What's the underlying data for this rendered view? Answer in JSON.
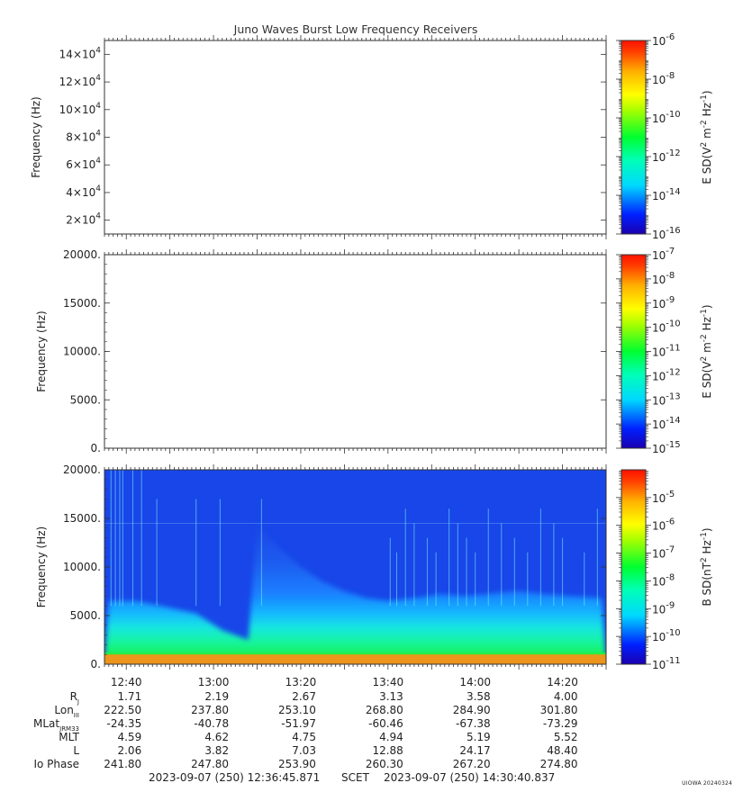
{
  "title": "Juno Waves Burst Low Frequency Receivers",
  "colors": {
    "frame": "#333333",
    "spectrogram_bg": "#1846e8",
    "spectrogram_floor": "#ff8c1a"
  },
  "chart_data": [
    {
      "type": "heatmap",
      "panel": "top",
      "ylabel": "Frequency (Hz)",
      "yscale": "linear",
      "ylim": [
        10000,
        150000
      ],
      "yticks": [
        {
          "value": 20000,
          "mant": "2",
          "exp": "4"
        },
        {
          "value": 40000,
          "mant": "4",
          "exp": "4"
        },
        {
          "value": 60000,
          "mant": "6",
          "exp": "4"
        },
        {
          "value": 80000,
          "mant": "8",
          "exp": "4"
        },
        {
          "value": 100000,
          "mant": "10",
          "exp": "4"
        },
        {
          "value": 120000,
          "mant": "12",
          "exp": "4"
        },
        {
          "value": 140000,
          "mant": "14",
          "exp": "4"
        }
      ],
      "xlim_minutes": [
        755,
        870
      ],
      "data_present": false,
      "colorbar": {
        "label_parts": [
          "E SD(V",
          "2",
          " m",
          "-2",
          " Hz",
          "-1",
          ")"
        ],
        "scale": "log",
        "range_exp": [
          -16,
          -6
        ],
        "tick_exps": [
          -16,
          -14,
          -12,
          -10,
          -8,
          -6
        ],
        "labels": [
          "-16",
          "-14",
          "-12",
          "-10",
          "-8",
          "-6"
        ]
      }
    },
    {
      "type": "heatmap",
      "panel": "middle",
      "ylabel": "Frequency (Hz)",
      "yscale": "linear",
      "ylim": [
        0,
        20000
      ],
      "yticks": [
        {
          "value": 0,
          "label": "0."
        },
        {
          "value": 5000,
          "label": "5000."
        },
        {
          "value": 10000,
          "label": "10000."
        },
        {
          "value": 15000,
          "label": "15000."
        },
        {
          "value": 20000,
          "label": "20000."
        }
      ],
      "xlim_minutes": [
        755,
        870
      ],
      "data_present": false,
      "colorbar": {
        "label_parts": [
          "E SD(V",
          "2",
          " m",
          "-2",
          " Hz",
          "-1",
          ")"
        ],
        "scale": "log",
        "range_exp": [
          -15,
          -7
        ],
        "tick_exps": [
          -15,
          -14,
          -13,
          -12,
          -11,
          -10,
          -9,
          -8,
          -7
        ],
        "labels": [
          "-15",
          "-14",
          "-13",
          "-12",
          "-11",
          "-10",
          "-9",
          "-8",
          "-7"
        ]
      }
    },
    {
      "type": "heatmap",
      "panel": "bottom",
      "ylabel": "Frequency (Hz)",
      "yscale": "linear",
      "ylim": [
        0,
        20000
      ],
      "yticks": [
        {
          "value": 0,
          "label": "0."
        },
        {
          "value": 5000,
          "label": "5000."
        },
        {
          "value": 10000,
          "label": "10000."
        },
        {
          "value": 15000,
          "label": "15000."
        },
        {
          "value": 20000,
          "label": "20000."
        }
      ],
      "xlim_minutes": [
        755,
        870
      ],
      "data_present": true,
      "spectrogram_features": {
        "intense_band_max_hz": 1000,
        "emission_envelope": [
          {
            "t": 756,
            "f": 6500
          },
          {
            "t": 762,
            "f": 6500
          },
          {
            "t": 768,
            "f": 6000
          },
          {
            "t": 776,
            "f": 5200
          },
          {
            "t": 782,
            "f": 3500
          },
          {
            "t": 788,
            "f": 2500
          },
          {
            "t": 790,
            "f": 14500
          },
          {
            "t": 795,
            "f": 12000
          },
          {
            "t": 800,
            "f": 10000
          },
          {
            "t": 805,
            "f": 8500
          },
          {
            "t": 810,
            "f": 7500
          },
          {
            "t": 815,
            "f": 6800
          },
          {
            "t": 820,
            "f": 6500
          },
          {
            "t": 826,
            "f": 6800
          },
          {
            "t": 832,
            "f": 7200
          },
          {
            "t": 838,
            "f": 7000
          },
          {
            "t": 844,
            "f": 7300
          },
          {
            "t": 850,
            "f": 7500
          },
          {
            "t": 856,
            "f": 7200
          },
          {
            "t": 862,
            "f": 7000
          },
          {
            "t": 869,
            "f": 6800
          }
        ],
        "vertical_streaks_minutes": [
          756.5,
          757.5,
          758.5,
          759.2,
          761.5,
          763.5,
          767,
          776,
          781.5,
          791,
          820.5,
          822,
          824,
          826,
          829,
          831,
          834,
          836,
          838,
          840,
          843,
          846,
          849,
          852,
          855,
          858,
          860,
          865,
          868
        ]
      },
      "colorbar": {
        "label_parts": [
          "B SD(nT",
          "2",
          " Hz",
          "-1",
          ")"
        ],
        "scale": "log",
        "range_exp": [
          -11,
          -4
        ],
        "tick_exps": [
          -11,
          -10,
          -9,
          -8,
          -7,
          -6,
          -5
        ],
        "labels": [
          "-11",
          "-10",
          "-9",
          "-8",
          "-7",
          "-6",
          "-5"
        ]
      }
    }
  ],
  "x_axis": {
    "ticks": [
      {
        "minutes": 760,
        "label": "12:40"
      },
      {
        "minutes": 780,
        "label": "13:00"
      },
      {
        "minutes": 800,
        "label": "13:20"
      },
      {
        "minutes": 820,
        "label": "13:40"
      },
      {
        "minutes": 840,
        "label": "14:00"
      },
      {
        "minutes": 860,
        "label": "14:20"
      }
    ]
  },
  "ephemeris": [
    {
      "label": "R",
      "sub": "J",
      "values": [
        "1.71",
        "2.19",
        "2.67",
        "3.13",
        "3.58",
        "4.00"
      ]
    },
    {
      "label": "Lon",
      "sub": "III",
      "values": [
        "222.50",
        "237.80",
        "253.10",
        "268.80",
        "284.90",
        "301.80"
      ]
    },
    {
      "label": "MLat",
      "sub": "JRM33",
      "values": [
        "-24.35",
        "-40.78",
        "-51.97",
        "-60.46",
        "-67.38",
        "-73.29"
      ]
    },
    {
      "label": "MLT",
      "sub": "",
      "values": [
        "4.59",
        "4.62",
        "4.75",
        "4.94",
        "5.19",
        "5.52"
      ]
    },
    {
      "label": "L",
      "sub": "",
      "values": [
        "2.06",
        "3.82",
        "7.03",
        "12.88",
        "24.17",
        "48.40"
      ]
    },
    {
      "label": "Io Phase",
      "sub": "",
      "values": [
        "241.80",
        "247.80",
        "253.90",
        "260.30",
        "267.20",
        "274.80"
      ]
    }
  ],
  "footer": {
    "start": "2023-09-07 (250) 12:36:45.871",
    "frame": "SCET",
    "end": "2023-09-07 (250) 14:30:40.837"
  },
  "credit": "UIOWA 20240324"
}
